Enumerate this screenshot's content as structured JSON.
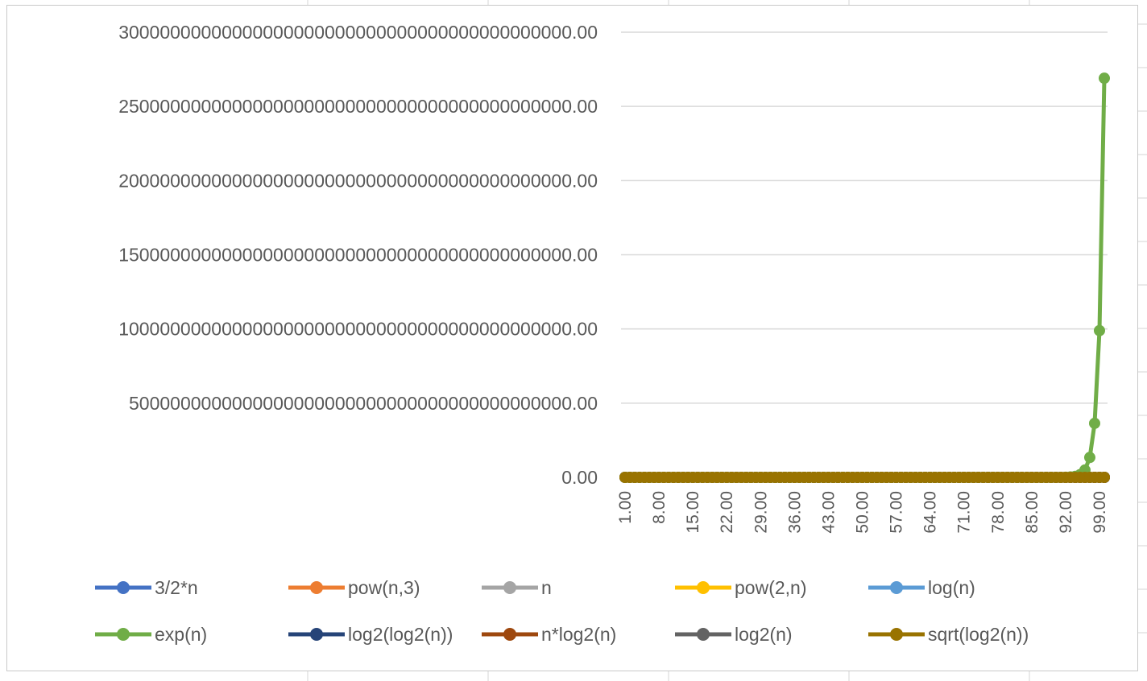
{
  "chart_data": {
    "type": "line",
    "title": "",
    "xlabel": "",
    "ylabel": "",
    "ylim": [
      0,
      3e+43
    ],
    "yticks": [
      0,
      5e+42,
      1e+43,
      1.5e+43,
      2e+43,
      2.5e+43,
      3e+43
    ],
    "ytick_labels": [
      "0.00",
      "5000000000000000000000000000000000000000000.00",
      "10000000000000000000000000000000000000000000.00",
      "15000000000000000000000000000000000000000000.00",
      "20000000000000000000000000000000000000000000.00",
      "25000000000000000000000000000000000000000000.00",
      "30000000000000000000000000000000000000000000.00"
    ],
    "x_range": [
      1,
      100
    ],
    "xtick_labels": [
      "1.00",
      "8.00",
      "15.00",
      "22.00",
      "29.00",
      "36.00",
      "43.00",
      "50.00",
      "57.00",
      "64.00",
      "71.00",
      "78.00",
      "85.00",
      "92.00",
      "99.00"
    ],
    "grid": true,
    "legend_position": "bottom",
    "series": [
      {
        "name": "3/2*n",
        "color": "#4472C4",
        "formula": "1.5*n"
      },
      {
        "name": "pow(n,3)",
        "color": "#ED7D31",
        "formula": "n^3"
      },
      {
        "name": "n",
        "color": "#A5A5A5",
        "formula": "n"
      },
      {
        "name": "pow(2,n)",
        "color": "#FFC000",
        "formula": "2^n"
      },
      {
        "name": "log(n)",
        "color": "#5B9BD5",
        "formula": "ln(n)"
      },
      {
        "name": "exp(n)",
        "color": "#70AD47",
        "formula": "e^n",
        "tail_points": [
          [
            90,
            1.22e+39
          ],
          [
            91,
            3.33e+39
          ],
          [
            92,
            9.05e+39
          ],
          [
            93,
            2.46e+40
          ],
          [
            94,
            6.69e+40
          ],
          [
            95,
            1.81e+41
          ],
          [
            96,
            4.92e+41
          ],
          [
            97,
            1.34e+42
          ],
          [
            98,
            3.64e+42
          ],
          [
            99,
            9.89e+42
          ],
          [
            100,
            2.69e+43
          ]
        ]
      },
      {
        "name": "log2(log2(n))",
        "color": "#264478",
        "formula": "log2(log2(n))"
      },
      {
        "name": "n*log2(n)",
        "color": "#9E480E",
        "formula": "n*log2(n)"
      },
      {
        "name": "log2(n)",
        "color": "#636363",
        "formula": "log2(n)"
      },
      {
        "name": "sqrt(log2(n))",
        "color": "#997300",
        "formula": "sqrt(log2(n))"
      }
    ]
  }
}
